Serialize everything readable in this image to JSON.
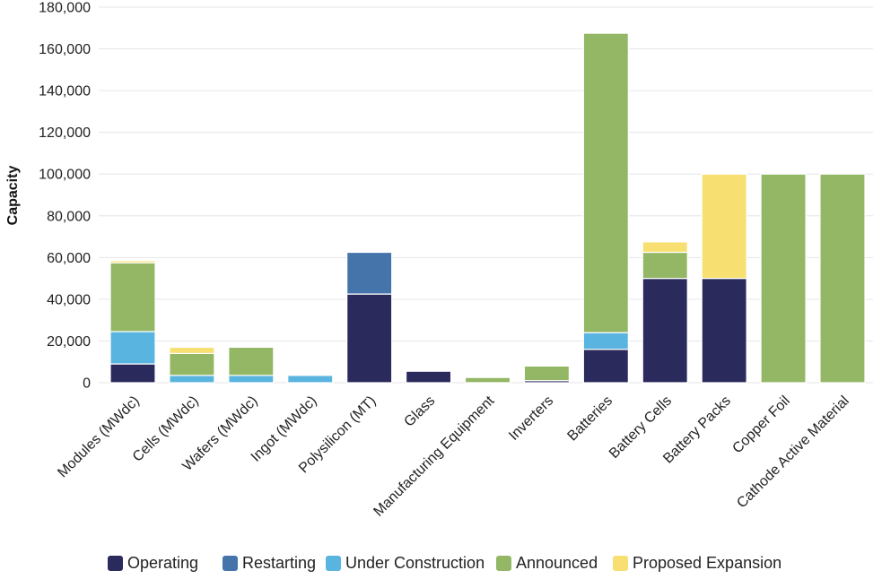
{
  "chart_data": {
    "type": "bar",
    "stacked": true,
    "ylabel": "Capacity",
    "xlabel": "",
    "ylim": [
      0,
      180000
    ],
    "yticks": [
      0,
      20000,
      40000,
      60000,
      80000,
      100000,
      120000,
      140000,
      160000,
      180000
    ],
    "ytick_labels": [
      "0",
      "20,000",
      "40,000",
      "60,000",
      "80,000",
      "100,000",
      "120,000",
      "140,000",
      "160,000",
      "180,000"
    ],
    "grid": true,
    "legend_position": "bottom",
    "categories": [
      "Modules (MWdc)",
      "Cells (MWdc)",
      "Wafers (MWdc)",
      "Ingot (MWdc)",
      "Polysilicon (MT)",
      "Glass",
      "Manufacturing Equipment",
      "Inverters",
      "Batteries",
      "Battery Cells",
      "Battery Packs",
      "Copper Foil",
      "Cathode Active Material"
    ],
    "series": [
      {
        "name": "Operating",
        "color": "#2b2a5c",
        "values": [
          9000,
          0,
          0,
          0,
          42500,
          5500,
          0,
          1000,
          16000,
          50000,
          50000,
          0,
          0
        ]
      },
      {
        "name": "Restarting",
        "color": "#4474aa",
        "values": [
          0,
          0,
          0,
          0,
          20000,
          0,
          0,
          0,
          0,
          0,
          0,
          0,
          0
        ]
      },
      {
        "name": "Under Construction",
        "color": "#5ab4e0",
        "values": [
          15500,
          3500,
          3500,
          3500,
          0,
          0,
          0,
          0,
          8000,
          0,
          0,
          0,
          0
        ]
      },
      {
        "name": "Announced",
        "color": "#93b765",
        "values": [
          33000,
          10500,
          13500,
          0,
          0,
          0,
          2500,
          7000,
          143500,
          12500,
          0,
          100000,
          100000
        ]
      },
      {
        "name": "Proposed Expansion",
        "color": "#f7df71",
        "values": [
          1000,
          3000,
          0,
          0,
          0,
          0,
          0,
          0,
          0,
          5000,
          50000,
          0,
          0
        ]
      }
    ]
  }
}
